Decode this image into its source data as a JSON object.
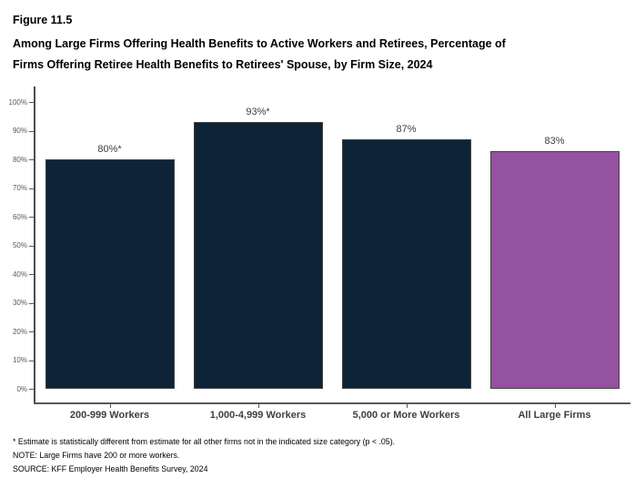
{
  "figure": {
    "number": "Figure 11.5",
    "title_lines": [
      "Among Large Firms Offering Health Benefits to Active Workers and Retirees, Percentage of",
      "Firms Offering Retiree Health Benefits to Retirees' Spouse, by Firm Size, 2024"
    ]
  },
  "chart_data": {
    "type": "bar",
    "title": "Among Large Firms Offering Health Benefits to Active Workers and Retirees, Percentage of Firms Offering Retiree Health Benefits to Retirees' Spouse, by Firm Size, 2024",
    "categories": [
      "200-999 Workers",
      "1,000-4,999 Workers",
      "5,000 or More Workers",
      "All Large Firms"
    ],
    "values": [
      80,
      93,
      87,
      83
    ],
    "value_labels": [
      "80%*",
      "93%*",
      "87%",
      "83%"
    ],
    "bar_colors": [
      "#0d2337",
      "#0d2337",
      "#0d2337",
      "#9452a1"
    ],
    "xlabel": "",
    "ylabel": "",
    "ylim": [
      0,
      100
    ],
    "ytick_step": 10,
    "ytick_labels": [
      "0%",
      "10%",
      "20%",
      "30%",
      "40%",
      "50%",
      "60%",
      "70%",
      "80%",
      "90%",
      "100%"
    ],
    "grid": false,
    "legend": "none"
  },
  "colors": {
    "bar_navy": "#0d2337",
    "bar_purple": "#9452a1",
    "axis_gray": "#595959",
    "label_gray": "#404040"
  },
  "footnotes": [
    "* Estimate is statistically different from estimate for all other firms not in the indicated size category (p < .05).",
    "NOTE: Large Firms have 200 or more workers.",
    "SOURCE: KFF Employer Health Benefits Survey, 2024"
  ]
}
